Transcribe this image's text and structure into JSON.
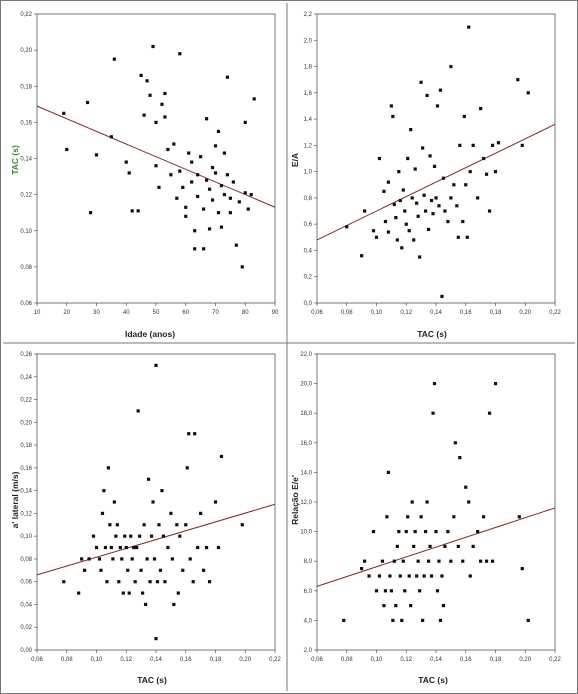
{
  "colors": {
    "points": "#111111",
    "trend": "#8b2525",
    "border": "#555555",
    "green_label": "#2e8b2e"
  },
  "chart_data": [
    {
      "type": "scatter",
      "xlabel": "Idade (anos)",
      "ylabel": "TAC (s)",
      "xlim": [
        10,
        90
      ],
      "ylim": [
        0.06,
        0.22
      ],
      "xticks": [
        10,
        20,
        30,
        40,
        50,
        60,
        70,
        80,
        90
      ],
      "xtick_labels": [
        "10",
        "20",
        "30",
        "40",
        "50",
        "60",
        "70",
        "80",
        "90"
      ],
      "yticks": [
        0.06,
        0.08,
        0.1,
        0.12,
        0.14,
        0.16,
        0.18,
        0.2,
        0.22
      ],
      "ytick_labels": [
        "0,06",
        "0,08",
        "0,10",
        "0,12",
        "0,14",
        "0,16",
        "0,18",
        "0,20",
        "0,22"
      ],
      "trend": [
        [
          10,
          0.169
        ],
        [
          90,
          0.113
        ]
      ],
      "points": [
        [
          19,
          0.165
        ],
        [
          20,
          0.145
        ],
        [
          27,
          0.171
        ],
        [
          28,
          0.11
        ],
        [
          30,
          0.142
        ],
        [
          35,
          0.152
        ],
        [
          36,
          0.195
        ],
        [
          40,
          0.138
        ],
        [
          41,
          0.132
        ],
        [
          42,
          0.111
        ],
        [
          44,
          0.111
        ],
        [
          45,
          0.186
        ],
        [
          46,
          0.164
        ],
        [
          47,
          0.183
        ],
        [
          48,
          0.175
        ],
        [
          49,
          0.202
        ],
        [
          50,
          0.16
        ],
        [
          50,
          0.136
        ],
        [
          51,
          0.124
        ],
        [
          52,
          0.17
        ],
        [
          53,
          0.176
        ],
        [
          53,
          0.163
        ],
        [
          54,
          0.145
        ],
        [
          55,
          0.131
        ],
        [
          56,
          0.148
        ],
        [
          57,
          0.118
        ],
        [
          58,
          0.198
        ],
        [
          58,
          0.133
        ],
        [
          59,
          0.124
        ],
        [
          60,
          0.113
        ],
        [
          60,
          0.108
        ],
        [
          61,
          0.143
        ],
        [
          62,
          0.138
        ],
        [
          62,
          0.127
        ],
        [
          63,
          0.1
        ],
        [
          63,
          0.09
        ],
        [
          64,
          0.131
        ],
        [
          64,
          0.119
        ],
        [
          65,
          0.141
        ],
        [
          66,
          0.112
        ],
        [
          66,
          0.09
        ],
        [
          67,
          0.162
        ],
        [
          67,
          0.128
        ],
        [
          68,
          0.123
        ],
        [
          68,
          0.101
        ],
        [
          69,
          0.135
        ],
        [
          69,
          0.117
        ],
        [
          70,
          0.147
        ],
        [
          70,
          0.132
        ],
        [
          71,
          0.155
        ],
        [
          71,
          0.11
        ],
        [
          72,
          0.125
        ],
        [
          72,
          0.102
        ],
        [
          73,
          0.143
        ],
        [
          73,
          0.12
        ],
        [
          74,
          0.185
        ],
        [
          74,
          0.131
        ],
        [
          75,
          0.118
        ],
        [
          75,
          0.11
        ],
        [
          76,
          0.127
        ],
        [
          77,
          0.092
        ],
        [
          78,
          0.116
        ],
        [
          79,
          0.08
        ],
        [
          80,
          0.121
        ],
        [
          80,
          0.16
        ],
        [
          81,
          0.112
        ],
        [
          82,
          0.12
        ],
        [
          83,
          0.173
        ]
      ]
    },
    {
      "type": "scatter",
      "xlabel": "TAC (s)",
      "ylabel": "E/A",
      "xlim": [
        0.06,
        0.22
      ],
      "ylim": [
        0.0,
        2.2
      ],
      "xticks": [
        0.06,
        0.08,
        0.1,
        0.12,
        0.14,
        0.16,
        0.18,
        0.2,
        0.22
      ],
      "xtick_labels": [
        "0,06",
        "0,08",
        "0,10",
        "0,12",
        "0,14",
        "0,16",
        "0,18",
        "0,20",
        "0,22"
      ],
      "yticks": [
        0.0,
        0.2,
        0.4,
        0.6,
        0.8,
        1.0,
        1.2,
        1.4,
        1.6,
        1.8,
        2.0,
        2.2
      ],
      "ytick_labels": [
        "0,0",
        "0,2",
        "0,4",
        "0,6",
        "0,8",
        "1,0",
        "1,2",
        "1,4",
        "1,6",
        "1,8",
        "2,0",
        "2,2"
      ],
      "trend": [
        [
          0.06,
          0.48
        ],
        [
          0.22,
          1.36
        ]
      ],
      "points": [
        [
          0.08,
          0.58
        ],
        [
          0.09,
          0.36
        ],
        [
          0.092,
          0.7
        ],
        [
          0.098,
          0.55
        ],
        [
          0.1,
          0.5
        ],
        [
          0.102,
          1.1
        ],
        [
          0.105,
          0.85
        ],
        [
          0.106,
          0.62
        ],
        [
          0.108,
          0.92
        ],
        [
          0.108,
          0.54
        ],
        [
          0.11,
          1.5
        ],
        [
          0.111,
          1.42
        ],
        [
          0.112,
          0.75
        ],
        [
          0.113,
          0.65
        ],
        [
          0.114,
          0.48
        ],
        [
          0.115,
          1.0
        ],
        [
          0.116,
          0.78
        ],
        [
          0.117,
          0.42
        ],
        [
          0.118,
          0.86
        ],
        [
          0.119,
          0.7
        ],
        [
          0.12,
          0.6
        ],
        [
          0.121,
          1.1
        ],
        [
          0.122,
          0.55
        ],
        [
          0.123,
          1.32
        ],
        [
          0.124,
          0.8
        ],
        [
          0.125,
          0.48
        ],
        [
          0.126,
          1.02
        ],
        [
          0.127,
          0.76
        ],
        [
          0.128,
          0.66
        ],
        [
          0.129,
          0.35
        ],
        [
          0.13,
          1.68
        ],
        [
          0.131,
          1.18
        ],
        [
          0.132,
          0.82
        ],
        [
          0.133,
          0.7
        ],
        [
          0.134,
          1.58
        ],
        [
          0.135,
          0.56
        ],
        [
          0.136,
          1.12
        ],
        [
          0.137,
          0.78
        ],
        [
          0.138,
          0.68
        ],
        [
          0.139,
          1.04
        ],
        [
          0.14,
          0.8
        ],
        [
          0.141,
          1.5
        ],
        [
          0.142,
          0.74
        ],
        [
          0.143,
          1.62
        ],
        [
          0.144,
          0.05
        ],
        [
          0.145,
          0.95
        ],
        [
          0.146,
          0.7
        ],
        [
          0.148,
          0.62
        ],
        [
          0.15,
          1.8
        ],
        [
          0.15,
          0.8
        ],
        [
          0.152,
          0.9
        ],
        [
          0.154,
          0.74
        ],
        [
          0.155,
          0.5
        ],
        [
          0.156,
          1.2
        ],
        [
          0.158,
          0.62
        ],
        [
          0.159,
          1.42
        ],
        [
          0.16,
          0.9
        ],
        [
          0.161,
          0.5
        ],
        [
          0.162,
          2.1
        ],
        [
          0.163,
          1.0
        ],
        [
          0.165,
          1.2
        ],
        [
          0.168,
          0.8
        ],
        [
          0.17,
          1.48
        ],
        [
          0.172,
          1.1
        ],
        [
          0.174,
          0.98
        ],
        [
          0.178,
          1.2
        ],
        [
          0.18,
          1.0
        ],
        [
          0.182,
          1.22
        ],
        [
          0.195,
          1.7
        ],
        [
          0.198,
          1.2
        ],
        [
          0.202,
          1.6
        ],
        [
          0.176,
          0.7
        ]
      ]
    },
    {
      "type": "scatter",
      "xlabel": "TAC (s)",
      "ylabel": "a' lateral (m/s)",
      "xlim": [
        0.06,
        0.22
      ],
      "ylim": [
        0.0,
        0.26
      ],
      "xticks": [
        0.06,
        0.08,
        0.1,
        0.12,
        0.14,
        0.16,
        0.18,
        0.2,
        0.22
      ],
      "xtick_labels": [
        "0,06",
        "0,08",
        "0,10",
        "0,12",
        "0,14",
        "0,16",
        "0,18",
        "0,20",
        "0,22"
      ],
      "yticks": [
        0.0,
        0.02,
        0.04,
        0.06,
        0.08,
        0.1,
        0.12,
        0.14,
        0.16,
        0.18,
        0.2,
        0.22,
        0.24,
        0.26
      ],
      "ytick_labels": [
        "0,00",
        "0,02",
        "0,04",
        "0,06",
        "0,08",
        "0,10",
        "0,12",
        "0,14",
        "0,16",
        "0,18",
        "0,20",
        "0,22",
        "0,24",
        "0,26"
      ],
      "trend": [
        [
          0.06,
          0.066
        ],
        [
          0.22,
          0.128
        ]
      ],
      "points": [
        [
          0.078,
          0.06
        ],
        [
          0.088,
          0.05
        ],
        [
          0.09,
          0.08
        ],
        [
          0.092,
          0.07
        ],
        [
          0.095,
          0.08
        ],
        [
          0.098,
          0.1
        ],
        [
          0.1,
          0.09
        ],
        [
          0.102,
          0.08
        ],
        [
          0.103,
          0.07
        ],
        [
          0.104,
          0.12
        ],
        [
          0.105,
          0.14
        ],
        [
          0.106,
          0.09
        ],
        [
          0.107,
          0.06
        ],
        [
          0.108,
          0.16
        ],
        [
          0.109,
          0.11
        ],
        [
          0.11,
          0.09
        ],
        [
          0.111,
          0.08
        ],
        [
          0.112,
          0.13
        ],
        [
          0.113,
          0.1
        ],
        [
          0.114,
          0.11
        ],
        [
          0.115,
          0.06
        ],
        [
          0.116,
          0.09
        ],
        [
          0.117,
          0.08
        ],
        [
          0.118,
          0.05
        ],
        [
          0.119,
          0.1
        ],
        [
          0.12,
          0.09
        ],
        [
          0.121,
          0.07
        ],
        [
          0.122,
          0.05
        ],
        [
          0.123,
          0.1
        ],
        [
          0.124,
          0.08
        ],
        [
          0.125,
          0.09
        ],
        [
          0.126,
          0.06
        ],
        [
          0.127,
          0.09
        ],
        [
          0.128,
          0.21
        ],
        [
          0.129,
          0.1
        ],
        [
          0.13,
          0.07
        ],
        [
          0.131,
          0.05
        ],
        [
          0.132,
          0.11
        ],
        [
          0.133,
          0.04
        ],
        [
          0.134,
          0.08
        ],
        [
          0.135,
          0.15
        ],
        [
          0.136,
          0.06
        ],
        [
          0.137,
          0.1
        ],
        [
          0.138,
          0.13
        ],
        [
          0.139,
          0.08
        ],
        [
          0.14,
          0.01
        ],
        [
          0.14,
          0.25
        ],
        [
          0.141,
          0.06
        ],
        [
          0.142,
          0.11
        ],
        [
          0.143,
          0.07
        ],
        [
          0.144,
          0.14
        ],
        [
          0.145,
          0.1
        ],
        [
          0.146,
          0.06
        ],
        [
          0.148,
          0.09
        ],
        [
          0.15,
          0.12
        ],
        [
          0.151,
          0.08
        ],
        [
          0.152,
          0.04
        ],
        [
          0.154,
          0.11
        ],
        [
          0.155,
          0.05
        ],
        [
          0.156,
          0.1
        ],
        [
          0.158,
          0.07
        ],
        [
          0.16,
          0.11
        ],
        [
          0.161,
          0.16
        ],
        [
          0.162,
          0.19
        ],
        [
          0.163,
          0.08
        ],
        [
          0.165,
          0.06
        ],
        [
          0.166,
          0.19
        ],
        [
          0.168,
          0.09
        ],
        [
          0.17,
          0.12
        ],
        [
          0.172,
          0.07
        ],
        [
          0.174,
          0.09
        ],
        [
          0.176,
          0.06
        ],
        [
          0.18,
          0.13
        ],
        [
          0.182,
          0.09
        ],
        [
          0.184,
          0.17
        ],
        [
          0.198,
          0.11
        ]
      ]
    },
    {
      "type": "scatter",
      "xlabel": "TAC (s)",
      "ylabel": "Relação E/e'",
      "xlim": [
        0.06,
        0.22
      ],
      "ylim": [
        2,
        22
      ],
      "xticks": [
        0.06,
        0.08,
        0.1,
        0.12,
        0.14,
        0.16,
        0.18,
        0.2,
        0.22
      ],
      "xtick_labels": [
        "0,06",
        "0,08",
        "0,10",
        "0,12",
        "0,14",
        "0,16",
        "0,18",
        "0,20",
        "0,22"
      ],
      "yticks": [
        2,
        4,
        6,
        8,
        10,
        12,
        14,
        16,
        18,
        20,
        22
      ],
      "ytick_labels": [
        "2,0",
        "4,0",
        "6,0",
        "8,0",
        "10,0",
        "12,0",
        "14,0",
        "16,0",
        "18,0",
        "20,0",
        "22,0"
      ],
      "trend": [
        [
          0.06,
          6.3
        ],
        [
          0.22,
          11.6
        ]
      ],
      "points": [
        [
          0.078,
          4.0
        ],
        [
          0.09,
          7.5
        ],
        [
          0.092,
          8.0
        ],
        [
          0.095,
          7.0
        ],
        [
          0.098,
          10.0
        ],
        [
          0.1,
          6.0
        ],
        [
          0.102,
          7.0
        ],
        [
          0.104,
          8.0
        ],
        [
          0.105,
          5.0
        ],
        [
          0.106,
          6.0
        ],
        [
          0.107,
          11.0
        ],
        [
          0.108,
          14.0
        ],
        [
          0.109,
          7.0
        ],
        [
          0.11,
          6.0
        ],
        [
          0.111,
          4.0
        ],
        [
          0.112,
          8.0
        ],
        [
          0.113,
          5.0
        ],
        [
          0.114,
          9.0
        ],
        [
          0.115,
          10.0
        ],
        [
          0.116,
          7.0
        ],
        [
          0.117,
          4.0
        ],
        [
          0.118,
          8.0
        ],
        [
          0.119,
          6.0
        ],
        [
          0.12,
          10.0
        ],
        [
          0.121,
          11.0
        ],
        [
          0.122,
          7.0
        ],
        [
          0.123,
          5.0
        ],
        [
          0.124,
          12.0
        ],
        [
          0.125,
          9.0
        ],
        [
          0.126,
          10.0
        ],
        [
          0.127,
          7.0
        ],
        [
          0.128,
          8.0
        ],
        [
          0.129,
          6.0
        ],
        [
          0.13,
          11.0
        ],
        [
          0.131,
          4.0
        ],
        [
          0.132,
          7.0
        ],
        [
          0.133,
          10.0
        ],
        [
          0.134,
          12.0
        ],
        [
          0.135,
          8.0
        ],
        [
          0.136,
          9.0
        ],
        [
          0.137,
          7.0
        ],
        [
          0.138,
          18.0
        ],
        [
          0.139,
          20.0
        ],
        [
          0.14,
          10.0
        ],
        [
          0.141,
          6.0
        ],
        [
          0.142,
          8.0
        ],
        [
          0.143,
          4.0
        ],
        [
          0.144,
          7.0
        ],
        [
          0.145,
          5.0
        ],
        [
          0.146,
          9.0
        ],
        [
          0.148,
          10.0
        ],
        [
          0.15,
          8.0
        ],
        [
          0.152,
          11.0
        ],
        [
          0.153,
          16.0
        ],
        [
          0.155,
          9.0
        ],
        [
          0.156,
          15.0
        ],
        [
          0.158,
          8.0
        ],
        [
          0.16,
          13.0
        ],
        [
          0.162,
          12.0
        ],
        [
          0.163,
          7.0
        ],
        [
          0.165,
          9.0
        ],
        [
          0.168,
          10.0
        ],
        [
          0.17,
          8.0
        ],
        [
          0.172,
          11.0
        ],
        [
          0.174,
          8.0
        ],
        [
          0.176,
          18.0
        ],
        [
          0.178,
          8.0
        ],
        [
          0.18,
          20.0
        ],
        [
          0.196,
          11.0
        ],
        [
          0.198,
          7.5
        ],
        [
          0.202,
          4.0
        ]
      ]
    }
  ]
}
